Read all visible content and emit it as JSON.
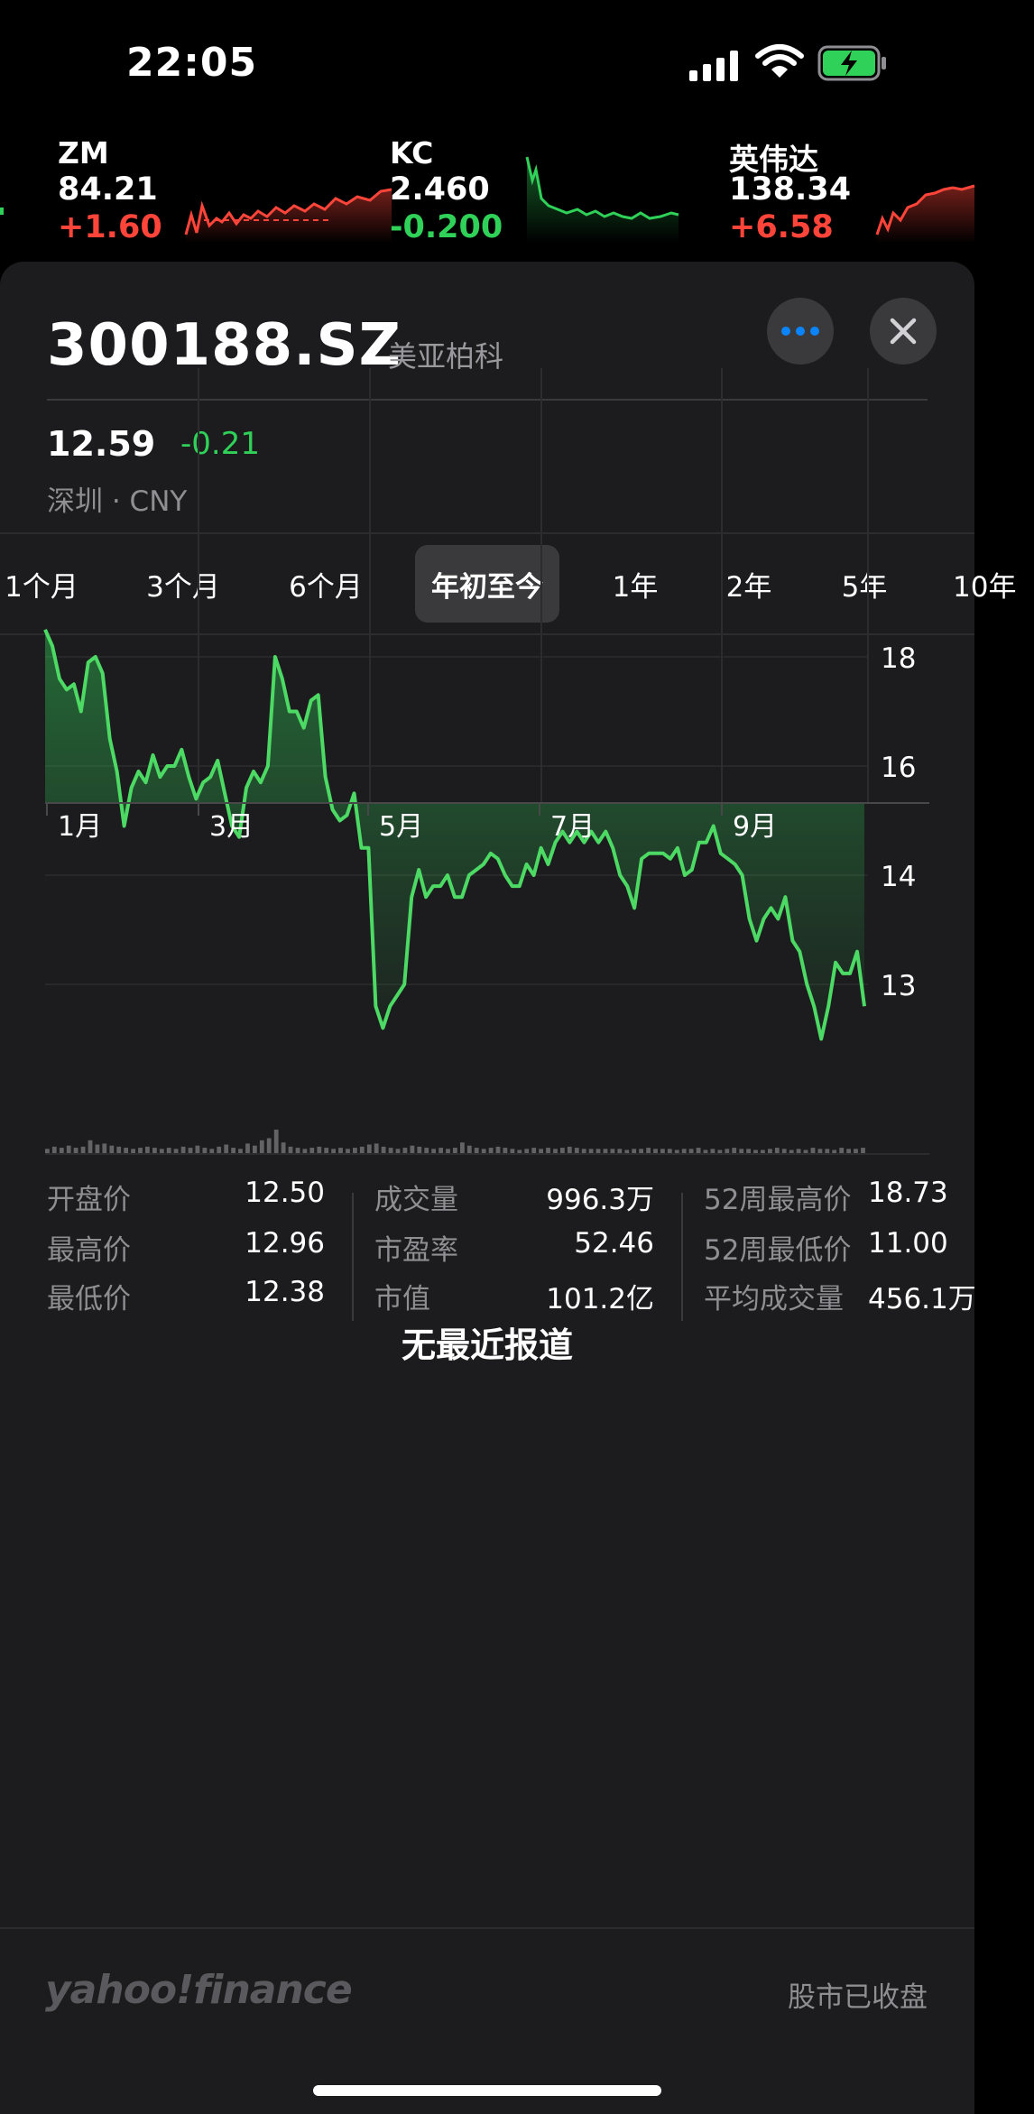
{
  "status_bar": {
    "time": "22:05"
  },
  "tickers": [
    {
      "symbol": "ZM",
      "price": "84.21",
      "change": "+1.60",
      "direction": "up"
    },
    {
      "symbol": "KC",
      "price": "2.460",
      "change": "-0.200",
      "direction": "down"
    },
    {
      "symbol": "英伟达",
      "price": "138.34",
      "change": "+6.58",
      "direction": "up"
    }
  ],
  "stock": {
    "symbol": "300188.SZ",
    "company": "美亚柏科",
    "price": "12.59",
    "change": "-0.21",
    "exchange": "深圳 · CNY"
  },
  "ranges": [
    "1个月",
    "3个月",
    "6个月",
    "年初至今",
    "1年",
    "2年",
    "5年",
    "10年"
  ],
  "selected_range": "年初至今",
  "chart_data": {
    "type": "area",
    "x_ticks": [
      "1月",
      "3月",
      "5月",
      "7月",
      "9月"
    ],
    "y_ticks": [
      "18",
      "16",
      "14",
      "13"
    ],
    "series": [
      {
        "values": [
          18.5,
          18.2,
          17.6,
          17.4,
          17.5,
          17.0,
          17.9,
          18.0,
          17.7,
          16.5,
          15.9,
          14.9,
          15.6,
          15.9,
          15.7,
          16.2,
          15.8,
          16.0,
          16.0,
          16.3,
          15.8,
          15.4,
          15.7,
          15.8,
          16.1,
          15.5,
          14.9,
          14.7,
          15.6,
          15.9,
          15.7,
          16.0,
          18.0,
          17.6,
          17.0,
          17.0,
          16.7,
          17.2,
          17.3,
          15.8,
          15.2,
          15.0,
          15.1,
          15.5,
          14.5,
          14.5,
          12.8,
          12.6,
          12.8,
          12.9,
          13.0,
          13.8,
          14.1,
          13.8,
          13.9,
          13.9,
          14.0,
          13.8,
          13.8,
          14.0,
          14.1,
          14.2,
          14.4,
          14.3,
          14.0,
          13.9,
          13.9,
          14.2,
          14.0,
          14.5,
          14.2,
          14.6,
          14.8,
          14.6,
          14.8,
          14.6,
          14.8,
          14.6,
          14.8,
          14.5,
          14.0,
          13.9,
          13.7,
          14.3,
          14.4,
          14.4,
          14.4,
          14.3,
          14.5,
          14.0,
          14.1,
          14.6,
          14.6,
          14.9,
          14.4,
          14.3,
          14.2,
          14.0,
          13.6,
          13.4,
          13.6,
          13.7,
          13.6,
          13.8,
          13.4,
          13.3,
          13.0,
          12.8,
          12.5,
          12.8,
          13.2,
          13.1,
          13.1,
          13.3,
          12.8
        ]
      }
    ],
    "volume": [
      4,
      6,
      5,
      7,
      5,
      6,
      12,
      8,
      9,
      7,
      6,
      5,
      4,
      5,
      6,
      5,
      4,
      5,
      4,
      6,
      5,
      7,
      5,
      4,
      6,
      8,
      5,
      4,
      9,
      7,
      12,
      14,
      22,
      10,
      6,
      5,
      4,
      5,
      6,
      5,
      4,
      5,
      4,
      5,
      6,
      8,
      9,
      6,
      5,
      4,
      5,
      7,
      6,
      5,
      4,
      5,
      4,
      5,
      10,
      7,
      5,
      4,
      5,
      6,
      5,
      4,
      3,
      4,
      5,
      4,
      5,
      4,
      5,
      6,
      5,
      4,
      4,
      4,
      4,
      4,
      4,
      3,
      4,
      4,
      5,
      4,
      4,
      4,
      3,
      4,
      4,
      5,
      3,
      4,
      3,
      4,
      5,
      4,
      4,
      3,
      3,
      4,
      5,
      4,
      3,
      4,
      3,
      5,
      4,
      4,
      3,
      5,
      4,
      4,
      5
    ]
  },
  "stats": {
    "col1": [
      {
        "label": "开盘价",
        "value": "12.50"
      },
      {
        "label": "最高价",
        "value": "12.96"
      },
      {
        "label": "最低价",
        "value": "12.38"
      }
    ],
    "col2": [
      {
        "label": "成交量",
        "value": "996.3万"
      },
      {
        "label": "市盈率",
        "value": "52.46"
      },
      {
        "label": "市值",
        "value": "101.2亿"
      }
    ],
    "col3": [
      {
        "label": "52周最高价",
        "value": "18.73"
      },
      {
        "label": "52周最低价",
        "value": "11.00"
      },
      {
        "label": "平均成交量",
        "value": "456.1万"
      }
    ]
  },
  "news": {
    "empty_text": "无最近报道"
  },
  "footer": {
    "logo": "yahoo!finance",
    "market_status": "股市已收盘"
  },
  "colors": {
    "up": "#ff453a",
    "down": "#30d158",
    "sheet": "#1c1c1e"
  }
}
